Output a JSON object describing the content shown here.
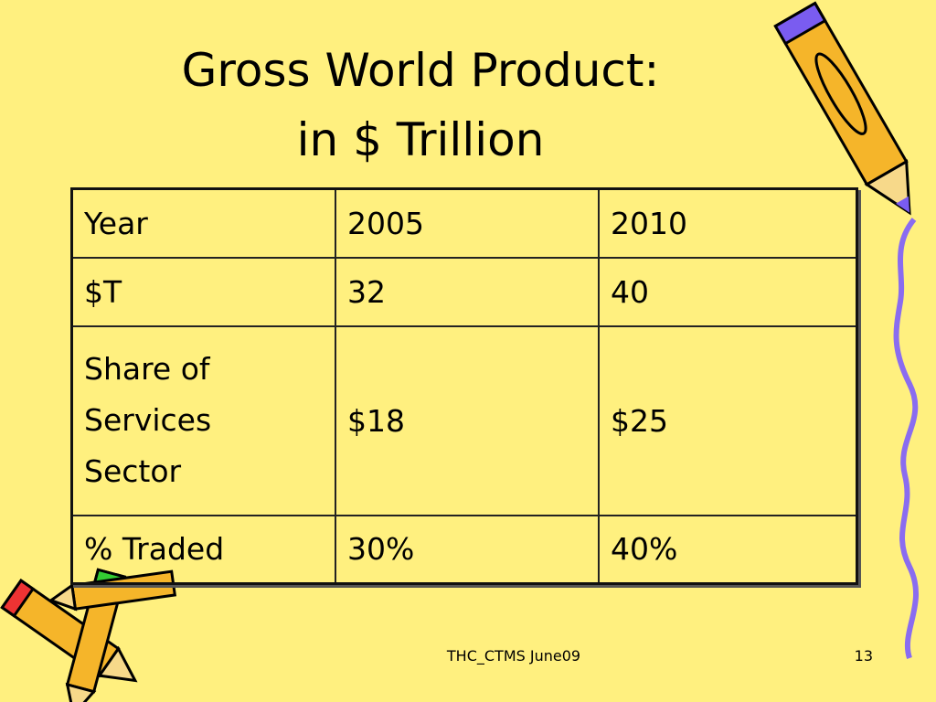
{
  "header": {
    "title": [
      "Gross World Product:",
      "in $ Trillion"
    ]
  },
  "table": {
    "rows": [
      [
        "Year",
        "2005",
        "2010"
      ],
      [
        "$T",
        "32",
        "40"
      ],
      [
        [
          "Share of",
          "Services",
          "Sector"
        ],
        "$18",
        "$25"
      ],
      [
        "% Traded",
        "30%",
        "40%"
      ]
    ]
  },
  "footer": {
    "text": "THC_CTMS June09",
    "page": "13"
  }
}
